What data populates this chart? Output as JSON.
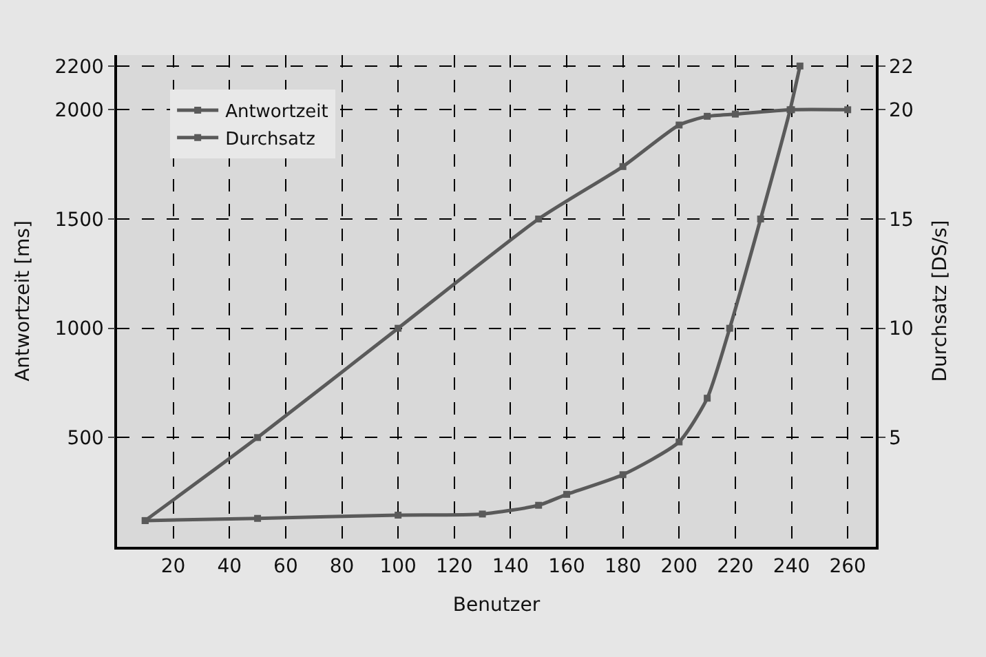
{
  "chart_data": {
    "type": "line",
    "xlabel": "Benutzer",
    "ylabel": "Antwortzeit [ms]",
    "y2label": "Durchsatz [DS/s]",
    "series": [
      {
        "name": "Antwortzeit",
        "color": "#5a5a5a",
        "x": [
          10,
          50,
          100,
          130,
          150,
          160,
          180,
          200,
          210,
          218,
          229,
          239.5,
          243
        ],
        "values": [
          120,
          130,
          145,
          150,
          190,
          240,
          330,
          480,
          680,
          1000,
          1500,
          2000,
          2200
        ]
      },
      {
        "name": "Durchsatz",
        "color": "#5a5a5a",
        "axis": "y2",
        "x": [
          10,
          50,
          100,
          150,
          180,
          200,
          210,
          220,
          240,
          260
        ],
        "values": [
          1.2,
          5,
          10,
          15,
          17.4,
          19.3,
          19.7,
          19.8,
          20,
          20
        ]
      }
    ],
    "xlim": [
      0,
      270
    ],
    "xticks": [
      20,
      40,
      60,
      80,
      100,
      120,
      140,
      160,
      180,
      200,
      220,
      240,
      260
    ],
    "ylim": [
      0,
      2250
    ],
    "yticks": [
      500,
      1000,
      1500,
      2000,
      2200
    ],
    "y2lim": [
      0,
      22.5
    ],
    "y2ticks": [
      5,
      10,
      15,
      20,
      22
    ],
    "grid": true,
    "legend": "top left",
    "marker": "square",
    "line_style": "solid"
  }
}
